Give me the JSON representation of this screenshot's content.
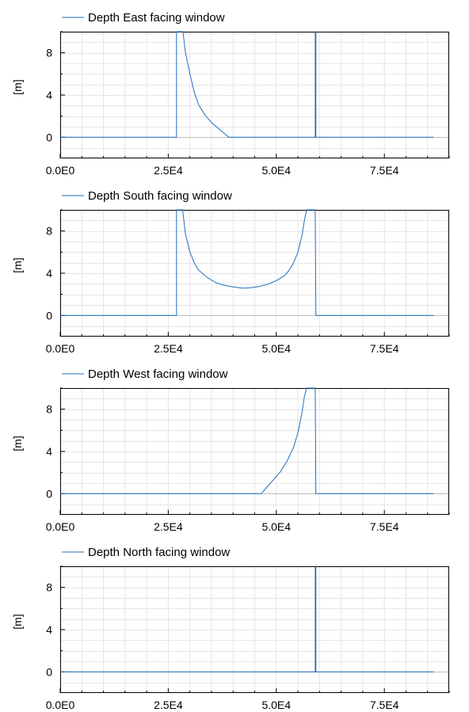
{
  "chart_data": [
    {
      "type": "line",
      "title": "",
      "xlabel": "",
      "ylabel": "[m]",
      "xlim": [
        0,
        90000
      ],
      "ylim": [
        -2,
        10
      ],
      "xticks": [
        "0.0E0",
        "2.5E4",
        "5.0E4",
        "7.5E4"
      ],
      "yticks": [
        "0",
        "4",
        "8"
      ],
      "legend": "top-left",
      "grid": true,
      "series": [
        {
          "name": "Depth East facing window",
          "color": "#1f6fbf",
          "x": [
            0,
            26900,
            26900,
            28400,
            29000,
            30000,
            31000,
            32000,
            33500,
            35000,
            37000,
            39000,
            59000,
            59000,
            59150,
            59150,
            86400
          ],
          "y": [
            0,
            0,
            10,
            10,
            8.0,
            6.0,
            4.3,
            3.1,
            2.1,
            1.4,
            0.7,
            0,
            0,
            10,
            10,
            0,
            0
          ]
        }
      ]
    },
    {
      "type": "line",
      "title": "",
      "xlabel": "",
      "ylabel": "[m]",
      "xlim": [
        0,
        90000
      ],
      "ylim": [
        -2,
        10
      ],
      "xticks": [
        "0.0E0",
        "2.5E4",
        "5.0E4",
        "7.5E4"
      ],
      "yticks": [
        "0",
        "4",
        "8"
      ],
      "legend": "top-left",
      "grid": true,
      "series": [
        {
          "name": "Depth South facing window",
          "color": "#1f6fbf",
          "x": [
            0,
            26900,
            26900,
            28300,
            29000,
            30000,
            31000,
            32000,
            34000,
            36000,
            38000,
            40000,
            42000,
            43000,
            44000,
            46000,
            48000,
            50000,
            52000,
            53000,
            54000,
            55000,
            56000,
            56500,
            57000,
            57000,
            59000,
            59150,
            86400
          ],
          "y": [
            0,
            0,
            10,
            10,
            7.7,
            6.0,
            5.0,
            4.3,
            3.6,
            3.1,
            2.85,
            2.7,
            2.6,
            2.6,
            2.62,
            2.75,
            2.95,
            3.3,
            3.8,
            4.3,
            5.0,
            6.0,
            7.7,
            9.0,
            10,
            10,
            10,
            0,
            0
          ]
        }
      ]
    },
    {
      "type": "line",
      "title": "",
      "xlabel": "",
      "ylabel": "[m]",
      "xlim": [
        0,
        90000
      ],
      "ylim": [
        -2,
        10
      ],
      "xticks": [
        "0.0E0",
        "2.5E4",
        "5.0E4",
        "7.5E4"
      ],
      "yticks": [
        "0",
        "4",
        "8"
      ],
      "legend": "top-left",
      "grid": true,
      "series": [
        {
          "name": "Depth West facing window",
          "color": "#1f6fbf",
          "x": [
            0,
            46500,
            48000,
            49500,
            51000,
            52500,
            54000,
            55000,
            56000,
            56500,
            57000,
            57000,
            59000,
            59150,
            86400
          ],
          "y": [
            0,
            0,
            0.7,
            1.4,
            2.1,
            3.1,
            4.4,
            5.8,
            7.8,
            9.2,
            10,
            10,
            10,
            0,
            0
          ]
        }
      ]
    },
    {
      "type": "line",
      "title": "",
      "xlabel": "",
      "ylabel": "[m]",
      "xlim": [
        0,
        90000
      ],
      "ylim": [
        -2,
        10
      ],
      "xticks": [
        "0.0E0",
        "2.5E4",
        "5.0E4",
        "7.5E4"
      ],
      "yticks": [
        "0",
        "4",
        "8"
      ],
      "legend": "top-left",
      "grid": true,
      "series": [
        {
          "name": "Depth North facing window",
          "color": "#1f6fbf",
          "x": [
            0,
            59000,
            59000,
            59150,
            59150,
            86400
          ],
          "y": [
            0,
            0,
            10,
            10,
            0,
            0
          ]
        }
      ]
    }
  ]
}
